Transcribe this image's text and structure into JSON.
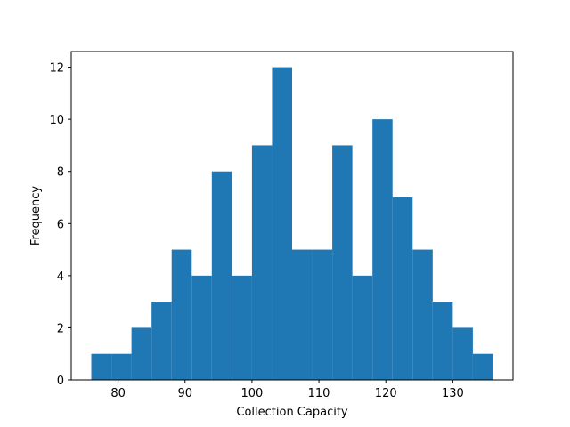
{
  "chart_data": {
    "type": "bar",
    "subtype": "histogram",
    "title": "",
    "xlabel": "Collection Capacity",
    "ylabel": "Frequency",
    "bin_edges": [
      76,
      79,
      82,
      85,
      88,
      91,
      94,
      97,
      100,
      103,
      106,
      109,
      112,
      115,
      118,
      121,
      124,
      127,
      130,
      133,
      136
    ],
    "values": [
      1,
      1,
      2,
      3,
      5,
      4,
      8,
      4,
      9,
      12,
      5,
      5,
      9,
      4,
      10,
      7,
      5,
      3,
      2,
      1
    ],
    "xlim": [
      73,
      139
    ],
    "ylim": [
      0,
      12.6
    ],
    "xticks": [
      80,
      90,
      100,
      110,
      120,
      130
    ],
    "yticks": [
      0,
      2,
      4,
      6,
      8,
      10,
      12
    ],
    "bar_color": "#1f77b4",
    "grid": false,
    "legend": "none"
  }
}
